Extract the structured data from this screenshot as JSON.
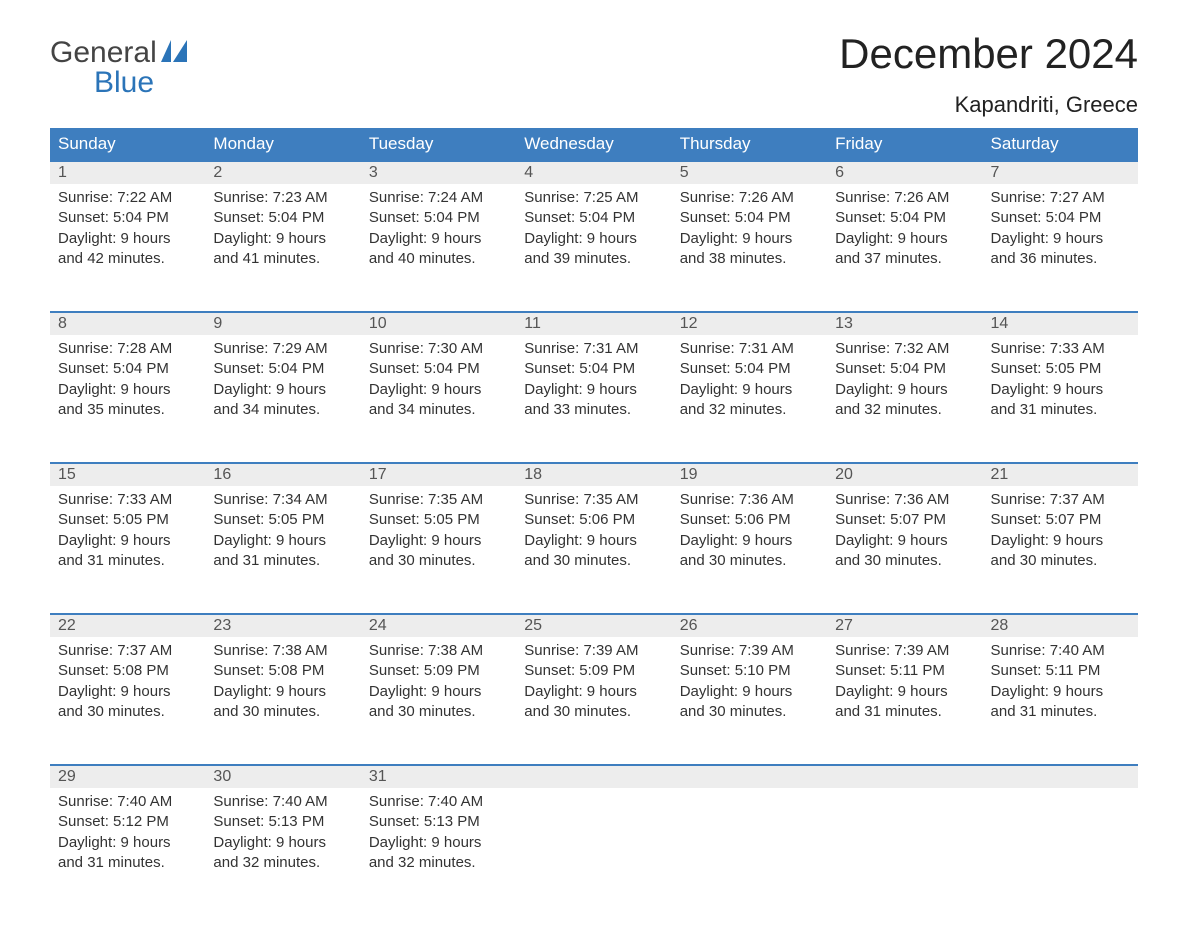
{
  "logo": {
    "line1": "General",
    "line2": "Blue"
  },
  "title": "December 2024",
  "subtitle": "Kapandriti, Greece",
  "colors": {
    "header_bg": "#3e7ebf",
    "header_text": "#ffffff",
    "daynum_bg": "#ededed",
    "row_border": "#3e7ebf",
    "logo_blue": "#2b74b8",
    "body_text": "#333333"
  },
  "weekdays": [
    "Sunday",
    "Monday",
    "Tuesday",
    "Wednesday",
    "Thursday",
    "Friday",
    "Saturday"
  ],
  "weeks": [
    [
      {
        "day": "1",
        "sunrise": "7:22 AM",
        "sunset": "5:04 PM",
        "daylight": "9 hours and 42 minutes."
      },
      {
        "day": "2",
        "sunrise": "7:23 AM",
        "sunset": "5:04 PM",
        "daylight": "9 hours and 41 minutes."
      },
      {
        "day": "3",
        "sunrise": "7:24 AM",
        "sunset": "5:04 PM",
        "daylight": "9 hours and 40 minutes."
      },
      {
        "day": "4",
        "sunrise": "7:25 AM",
        "sunset": "5:04 PM",
        "daylight": "9 hours and 39 minutes."
      },
      {
        "day": "5",
        "sunrise": "7:26 AM",
        "sunset": "5:04 PM",
        "daylight": "9 hours and 38 minutes."
      },
      {
        "day": "6",
        "sunrise": "7:26 AM",
        "sunset": "5:04 PM",
        "daylight": "9 hours and 37 minutes."
      },
      {
        "day": "7",
        "sunrise": "7:27 AM",
        "sunset": "5:04 PM",
        "daylight": "9 hours and 36 minutes."
      }
    ],
    [
      {
        "day": "8",
        "sunrise": "7:28 AM",
        "sunset": "5:04 PM",
        "daylight": "9 hours and 35 minutes."
      },
      {
        "day": "9",
        "sunrise": "7:29 AM",
        "sunset": "5:04 PM",
        "daylight": "9 hours and 34 minutes."
      },
      {
        "day": "10",
        "sunrise": "7:30 AM",
        "sunset": "5:04 PM",
        "daylight": "9 hours and 34 minutes."
      },
      {
        "day": "11",
        "sunrise": "7:31 AM",
        "sunset": "5:04 PM",
        "daylight": "9 hours and 33 minutes."
      },
      {
        "day": "12",
        "sunrise": "7:31 AM",
        "sunset": "5:04 PM",
        "daylight": "9 hours and 32 minutes."
      },
      {
        "day": "13",
        "sunrise": "7:32 AM",
        "sunset": "5:04 PM",
        "daylight": "9 hours and 32 minutes."
      },
      {
        "day": "14",
        "sunrise": "7:33 AM",
        "sunset": "5:05 PM",
        "daylight": "9 hours and 31 minutes."
      }
    ],
    [
      {
        "day": "15",
        "sunrise": "7:33 AM",
        "sunset": "5:05 PM",
        "daylight": "9 hours and 31 minutes."
      },
      {
        "day": "16",
        "sunrise": "7:34 AM",
        "sunset": "5:05 PM",
        "daylight": "9 hours and 31 minutes."
      },
      {
        "day": "17",
        "sunrise": "7:35 AM",
        "sunset": "5:05 PM",
        "daylight": "9 hours and 30 minutes."
      },
      {
        "day": "18",
        "sunrise": "7:35 AM",
        "sunset": "5:06 PM",
        "daylight": "9 hours and 30 minutes."
      },
      {
        "day": "19",
        "sunrise": "7:36 AM",
        "sunset": "5:06 PM",
        "daylight": "9 hours and 30 minutes."
      },
      {
        "day": "20",
        "sunrise": "7:36 AM",
        "sunset": "5:07 PM",
        "daylight": "9 hours and 30 minutes."
      },
      {
        "day": "21",
        "sunrise": "7:37 AM",
        "sunset": "5:07 PM",
        "daylight": "9 hours and 30 minutes."
      }
    ],
    [
      {
        "day": "22",
        "sunrise": "7:37 AM",
        "sunset": "5:08 PM",
        "daylight": "9 hours and 30 minutes."
      },
      {
        "day": "23",
        "sunrise": "7:38 AM",
        "sunset": "5:08 PM",
        "daylight": "9 hours and 30 minutes."
      },
      {
        "day": "24",
        "sunrise": "7:38 AM",
        "sunset": "5:09 PM",
        "daylight": "9 hours and 30 minutes."
      },
      {
        "day": "25",
        "sunrise": "7:39 AM",
        "sunset": "5:09 PM",
        "daylight": "9 hours and 30 minutes."
      },
      {
        "day": "26",
        "sunrise": "7:39 AM",
        "sunset": "5:10 PM",
        "daylight": "9 hours and 30 minutes."
      },
      {
        "day": "27",
        "sunrise": "7:39 AM",
        "sunset": "5:11 PM",
        "daylight": "9 hours and 31 minutes."
      },
      {
        "day": "28",
        "sunrise": "7:40 AM",
        "sunset": "5:11 PM",
        "daylight": "9 hours and 31 minutes."
      }
    ],
    [
      {
        "day": "29",
        "sunrise": "7:40 AM",
        "sunset": "5:12 PM",
        "daylight": "9 hours and 31 minutes."
      },
      {
        "day": "30",
        "sunrise": "7:40 AM",
        "sunset": "5:13 PM",
        "daylight": "9 hours and 32 minutes."
      },
      {
        "day": "31",
        "sunrise": "7:40 AM",
        "sunset": "5:13 PM",
        "daylight": "9 hours and 32 minutes."
      },
      null,
      null,
      null,
      null
    ]
  ],
  "labels": {
    "sunrise": "Sunrise: ",
    "sunset": "Sunset: ",
    "daylight": "Daylight: "
  }
}
